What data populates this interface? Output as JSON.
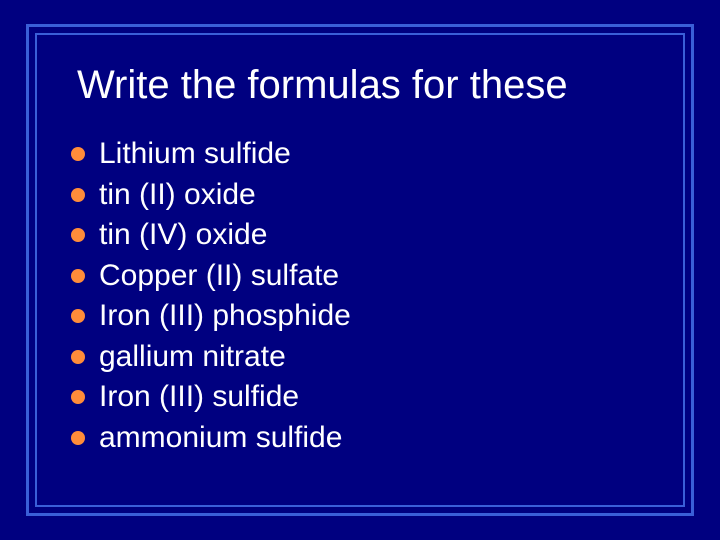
{
  "slide": {
    "background_color": "#000080",
    "border_outer_color": "#3a5fd8",
    "border_inner_color": "#3a5fd8",
    "title": "Write the formulas for these",
    "title_color": "#ffffff",
    "title_fontsize": 40,
    "bullet_color": "#ff8c3a",
    "item_color": "#ffffff",
    "item_fontsize": 30,
    "items": [
      "Lithium sulfide",
      "tin (II) oxide",
      "tin (IV) oxide",
      "Copper (II) sulfate",
      "Iron (III) phosphide",
      "gallium nitrate",
      "Iron (III) sulfide",
      "ammonium sulfide"
    ]
  }
}
